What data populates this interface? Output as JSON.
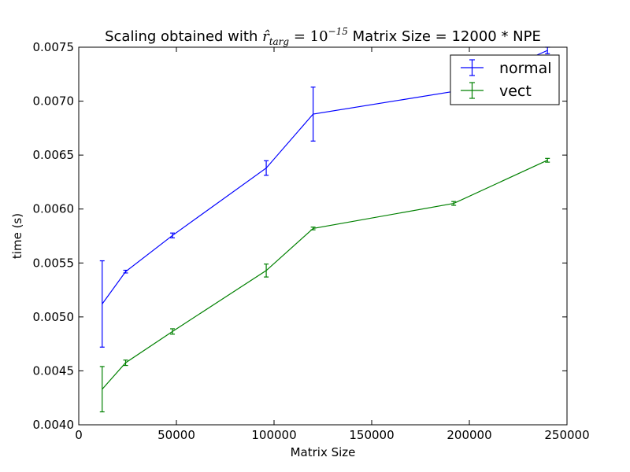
{
  "chart_data": {
    "type": "line",
    "title_prefix": "Scaling obtained with ",
    "title_math_base": "r̂",
    "title_math_sub": "targ",
    "title_math_eq": " = 10",
    "title_math_exp": "−15",
    "title_suffix": " Matrix Size = 12000 * NPE",
    "xlabel": "Matrix Size",
    "ylabel": "time (s)",
    "xlim": [
      0,
      250000
    ],
    "ylim": [
      0.004,
      0.0075
    ],
    "xticks": [
      0,
      50000,
      100000,
      150000,
      200000,
      250000
    ],
    "xtick_labels": [
      "0",
      "50000",
      "100000",
      "150000",
      "200000",
      "250000"
    ],
    "yticks": [
      0.004,
      0.0045,
      0.005,
      0.0055,
      0.006,
      0.0065,
      0.007,
      0.0075
    ],
    "ytick_labels": [
      "0.0040",
      "0.0045",
      "0.0050",
      "0.0055",
      "0.0060",
      "0.0065",
      "0.0070",
      "0.0075"
    ],
    "grid": false,
    "legend_position": "top-right",
    "series": [
      {
        "name": "normal",
        "color": "#0000ff",
        "x": [
          12000,
          24000,
          48000,
          96000,
          120000,
          192000,
          240000
        ],
        "y": [
          0.00512,
          0.00542,
          0.005755,
          0.00638,
          0.00688,
          0.00709,
          0.00747
        ],
        "yerr": [
          0.0004,
          1.25e-05,
          2.25e-05,
          6.75e-05,
          0.00025,
          2e-05,
          3e-05
        ]
      },
      {
        "name": "vect",
        "color": "#008000",
        "x": [
          12000,
          24000,
          48000,
          96000,
          120000,
          192000,
          240000
        ],
        "y": [
          0.00433,
          0.004575,
          0.004865,
          0.00543,
          0.00582,
          0.006052,
          0.006452
        ],
        "yerr": [
          0.00021,
          2.5e-05,
          2.5e-05,
          6e-05,
          1.25e-05,
          1.75e-05,
          1.75e-05
        ]
      }
    ]
  }
}
